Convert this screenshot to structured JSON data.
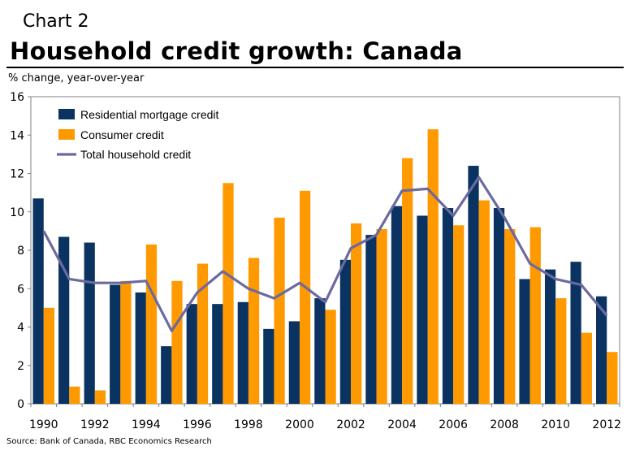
{
  "header": {
    "label": "Chart 2",
    "title": "Household credit growth: Canada",
    "ylabel": "% change, year-over-year",
    "source": "Source: Bank of Canada, RBC Economics Research"
  },
  "chart_data": {
    "type": "bar",
    "categories": [
      "1990",
      "1991",
      "1992",
      "1993",
      "1994",
      "1995",
      "1996",
      "1997",
      "1998",
      "1999",
      "2000",
      "2001",
      "2002",
      "2003",
      "2004",
      "2005",
      "2006",
      "2007",
      "2008",
      "2009",
      "2010",
      "2011",
      "2012"
    ],
    "x_tick_labels": [
      "1990",
      "1992",
      "1994",
      "1996",
      "1998",
      "2000",
      "2002",
      "2004",
      "2006",
      "2008",
      "2010",
      "2012"
    ],
    "y_tick_labels": [
      "0",
      "2",
      "4",
      "6",
      "8",
      "10",
      "12",
      "14",
      "16"
    ],
    "ylim": [
      0,
      16
    ],
    "series": [
      {
        "name": "Residential mortgage credit",
        "type": "bar",
        "color": "#0a3361",
        "values": [
          10.7,
          8.7,
          8.4,
          6.2,
          5.8,
          3.0,
          5.2,
          5.2,
          5.3,
          3.9,
          4.3,
          5.5,
          7.5,
          8.8,
          10.3,
          9.8,
          10.2,
          12.4,
          10.2,
          6.5,
          7.0,
          7.4,
          5.6
        ]
      },
      {
        "name": "Consumer credit",
        "type": "bar",
        "color": "#ff9900",
        "values": [
          5.0,
          0.9,
          0.7,
          6.4,
          8.3,
          6.4,
          7.3,
          11.5,
          7.6,
          9.7,
          11.1,
          4.9,
          9.4,
          9.1,
          12.8,
          14.3,
          9.3,
          10.6,
          9.1,
          9.2,
          5.5,
          3.7,
          2.7
        ]
      },
      {
        "name": "Total household credit",
        "type": "line",
        "color": "#6b6a9e",
        "values": [
          9.0,
          6.5,
          6.3,
          6.3,
          6.4,
          3.8,
          5.8,
          6.9,
          6.0,
          5.5,
          6.3,
          5.3,
          8.1,
          8.8,
          11.1,
          11.2,
          9.8,
          11.8,
          9.7,
          7.3,
          6.5,
          6.2,
          4.6
        ]
      }
    ],
    "legend_position": "top-left",
    "grid": false
  }
}
